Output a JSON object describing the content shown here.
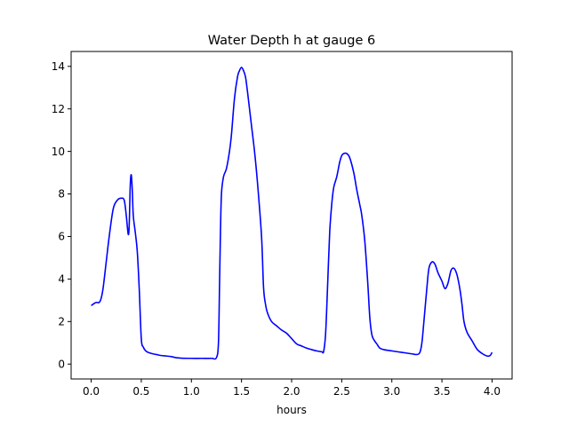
{
  "chart_data": {
    "type": "line",
    "title": "Water Depth h at gauge 6",
    "xlabel": "hours",
    "ylabel": "",
    "xlim": [
      -0.2,
      4.2
    ],
    "ylim": [
      -0.7,
      14.7
    ],
    "xticks": [
      0.0,
      0.5,
      1.0,
      1.5,
      2.0,
      2.5,
      3.0,
      3.5,
      4.0
    ],
    "xtick_labels": [
      "0.0",
      "0.5",
      "1.0",
      "1.5",
      "2.0",
      "2.5",
      "3.0",
      "3.5",
      "4.0"
    ],
    "yticks": [
      0,
      2,
      4,
      6,
      8,
      10,
      12,
      14
    ],
    "ytick_labels": [
      "0",
      "2",
      "4",
      "6",
      "8",
      "10",
      "12",
      "14"
    ],
    "grid": false,
    "series": [
      {
        "color": "#0000ff",
        "x": [
          0.0,
          0.03,
          0.05,
          0.08,
          0.1,
          0.12,
          0.15,
          0.18,
          0.22,
          0.26,
          0.3,
          0.33,
          0.35,
          0.37,
          0.38,
          0.39,
          0.4,
          0.41,
          0.42,
          0.44,
          0.46,
          0.48,
          0.5,
          0.52,
          0.55,
          0.6,
          0.65,
          0.7,
          0.75,
          0.8,
          0.85,
          0.9,
          1.0,
          1.1,
          1.2,
          1.25,
          1.27,
          1.28,
          1.29,
          1.3,
          1.32,
          1.35,
          1.38,
          1.4,
          1.43,
          1.46,
          1.48,
          1.5,
          1.52,
          1.54,
          1.56,
          1.58,
          1.6,
          1.63,
          1.66,
          1.7,
          1.72,
          1.74,
          1.76,
          1.8,
          1.85,
          1.9,
          1.95,
          2.0,
          2.05,
          2.1,
          2.15,
          2.2,
          2.25,
          2.3,
          2.32,
          2.34,
          2.36,
          2.38,
          2.4,
          2.42,
          2.45,
          2.48,
          2.5,
          2.52,
          2.55,
          2.58,
          2.62,
          2.65,
          2.68,
          2.7,
          2.73,
          2.76,
          2.78,
          2.8,
          2.82,
          2.85,
          2.88,
          2.92,
          3.0,
          3.1,
          3.2,
          3.25,
          3.28,
          3.3,
          3.32,
          3.35,
          3.37,
          3.4,
          3.43,
          3.46,
          3.5,
          3.53,
          3.56,
          3.59,
          3.62,
          3.65,
          3.68,
          3.7,
          3.72,
          3.75,
          3.8,
          3.85,
          3.9,
          3.95,
          3.98,
          4.0
        ],
        "y": [
          2.75,
          2.85,
          2.9,
          2.9,
          3.1,
          3.6,
          4.8,
          6.0,
          7.3,
          7.7,
          7.8,
          7.7,
          7.0,
          6.1,
          6.6,
          8.4,
          8.9,
          8.2,
          7.0,
          6.2,
          5.3,
          3.5,
          1.2,
          0.8,
          0.6,
          0.5,
          0.45,
          0.4,
          0.38,
          0.35,
          0.3,
          0.28,
          0.27,
          0.27,
          0.27,
          0.3,
          1.0,
          3.5,
          6.2,
          8.0,
          8.8,
          9.2,
          10.0,
          10.8,
          12.5,
          13.5,
          13.8,
          13.95,
          13.8,
          13.5,
          12.8,
          12.0,
          11.2,
          10.0,
          8.5,
          6.0,
          3.6,
          2.8,
          2.4,
          2.0,
          1.8,
          1.6,
          1.45,
          1.2,
          0.95,
          0.85,
          0.75,
          0.68,
          0.62,
          0.58,
          0.6,
          1.5,
          3.8,
          6.2,
          7.5,
          8.3,
          8.8,
          9.5,
          9.8,
          9.9,
          9.9,
          9.7,
          9.0,
          8.2,
          7.5,
          7.0,
          5.8,
          3.8,
          2.2,
          1.4,
          1.15,
          0.95,
          0.75,
          0.68,
          0.62,
          0.55,
          0.48,
          0.45,
          0.55,
          1.0,
          2.0,
          3.6,
          4.5,
          4.8,
          4.7,
          4.3,
          3.9,
          3.55,
          3.8,
          4.4,
          4.5,
          4.2,
          3.5,
          2.8,
          2.0,
          1.5,
          1.1,
          0.7,
          0.5,
          0.38,
          0.4,
          0.55
        ]
      }
    ]
  }
}
